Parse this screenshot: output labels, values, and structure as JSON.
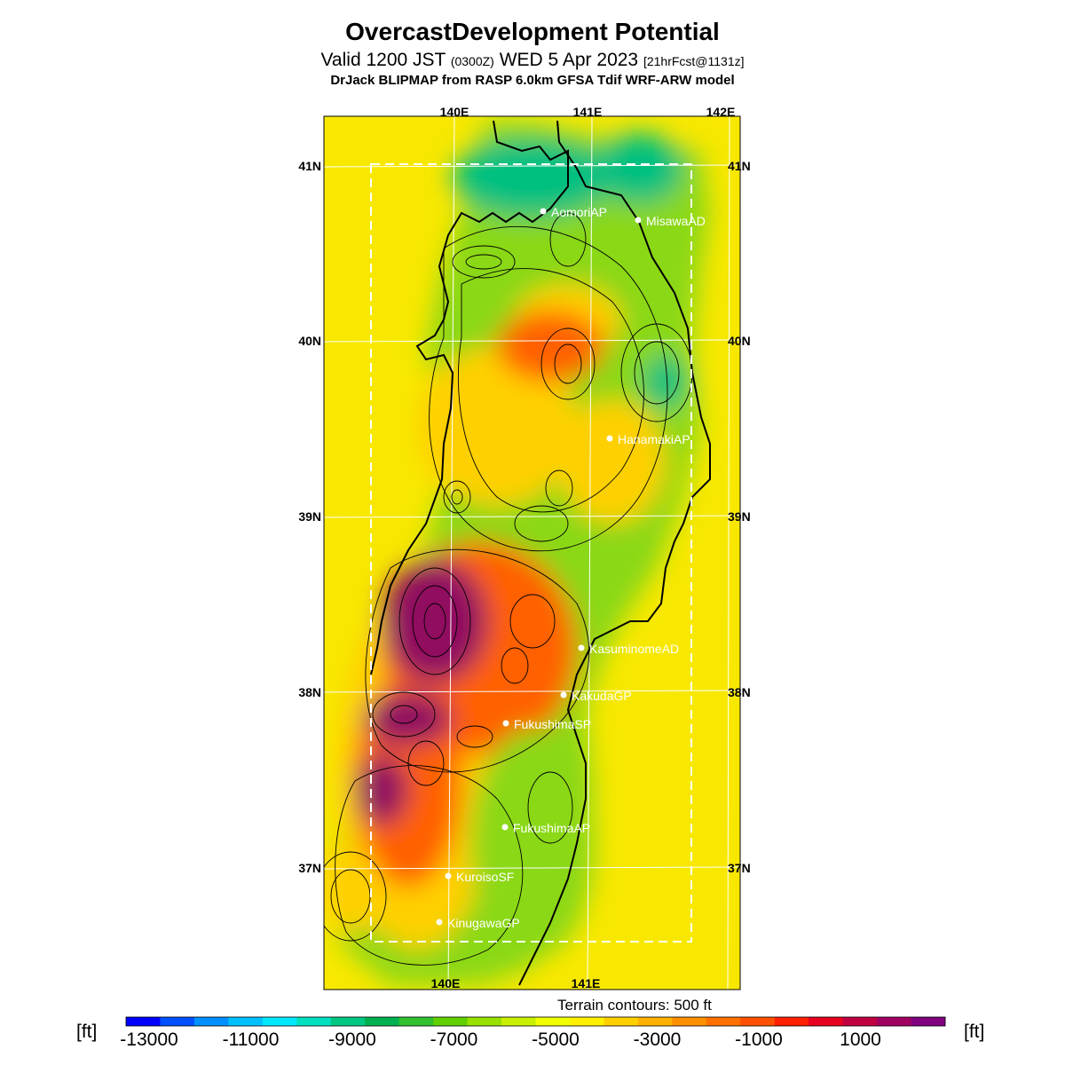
{
  "title": "OvercastDevelopment Potential",
  "subtitle": {
    "part1": "Valid 1200 JST",
    "part2": "(0300Z)",
    "part3": "WED 5 Apr 2023",
    "part4": "[21hrFcst@1131z]"
  },
  "model_line": "DrJack BLIPMAP from RASP 6.0km GFSA Tdif WRF-ARW model",
  "grid_labels": {
    "lon_top": [
      "140E",
      "141E",
      "142E"
    ],
    "lon_bottom": [
      "140E",
      "141E"
    ],
    "lat_left": [
      "41N",
      "40N",
      "39N",
      "38N",
      "37N"
    ],
    "lat_right": [
      "41N",
      "40N",
      "39N",
      "38N",
      "37N"
    ]
  },
  "stations": [
    {
      "name": "AomoriAP"
    },
    {
      "name": "MisawaAD"
    },
    {
      "name": "HanamakiAP"
    },
    {
      "name": "KasuminomeAD"
    },
    {
      "name": "KakudaGP"
    },
    {
      "name": "FukushimaSP"
    },
    {
      "name": "FukushimaAP"
    },
    {
      "name": "KuroisoSF"
    },
    {
      "name": "KinugawaGP"
    }
  ],
  "terrain_note": "Terrain contours: 500 ft",
  "colorbar": {
    "unit_left": "[ft]",
    "unit_right": "[ft]",
    "tick_labels": [
      "-13000",
      "-11000",
      "-9000",
      "-7000",
      "-5000",
      "-3000",
      "-1000",
      "1000"
    ],
    "colors": [
      "#0000ff",
      "#0050ff",
      "#0090ff",
      "#00c0ff",
      "#00e8ff",
      "#00e0c0",
      "#00c880",
      "#00b050",
      "#30c030",
      "#60d000",
      "#98e000",
      "#c8f000",
      "#f0ff00",
      "#fff000",
      "#ffd000",
      "#ffb000",
      "#ff9000",
      "#ff7000",
      "#ff5000",
      "#ff2000",
      "#e80020",
      "#c00040",
      "#a00060",
      "#800080"
    ]
  },
  "field_colors": {
    "sea": "#f8e800",
    "land_low": "#8ad818",
    "land_mid": "#ffd000",
    "high": "#ff6000",
    "max": "#901060",
    "trough": "#00c080"
  }
}
